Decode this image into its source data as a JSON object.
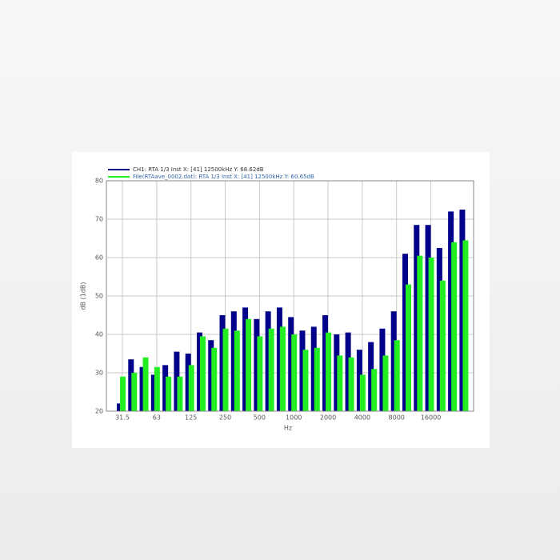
{
  "chart_data": {
    "type": "bar",
    "categories": [
      "31.5",
      null,
      null,
      "63",
      null,
      null,
      "125",
      null,
      null,
      "250",
      null,
      null,
      "500",
      null,
      null,
      "1000",
      null,
      null,
      "2000",
      null,
      null,
      "4000",
      null,
      null,
      "8000",
      null,
      null,
      "16000",
      null,
      null,
      null
    ],
    "series": [
      {
        "name": "CH1: RTA 1/3 Inst   X: [41] 12500kHz Y: 68.62dB",
        "color": "#00008b",
        "values": [
          22,
          33.5,
          31.5,
          29.5,
          32,
          35.5,
          35,
          40.5,
          38.5,
          45,
          46,
          47,
          44,
          46,
          47,
          44.5,
          41,
          42,
          45,
          40,
          40.5,
          36,
          38,
          41.5,
          46,
          61,
          68.5,
          68.5,
          62.5,
          72,
          72.5
        ]
      },
      {
        "name": "File(RTAave_0002.dat): RTA 1/3 Inst   X: [41] 12500kHz Y: 60.65dB",
        "color": "#22ee22",
        "values": [
          29,
          30,
          34,
          31.5,
          29,
          29,
          32,
          39.5,
          36.5,
          41.5,
          41,
          44,
          39.5,
          41.5,
          42,
          40,
          36,
          36.5,
          40.5,
          34.5,
          34,
          29.5,
          31,
          34.5,
          38.5,
          53,
          60.5,
          60,
          54,
          64,
          64.5
        ]
      }
    ],
    "xlabel": "Hz",
    "ylabel": "dB (1dB)",
    "ylim": [
      20,
      80
    ],
    "yticks": [
      20,
      30,
      40,
      50,
      60,
      70,
      80
    ],
    "grid": true
  }
}
